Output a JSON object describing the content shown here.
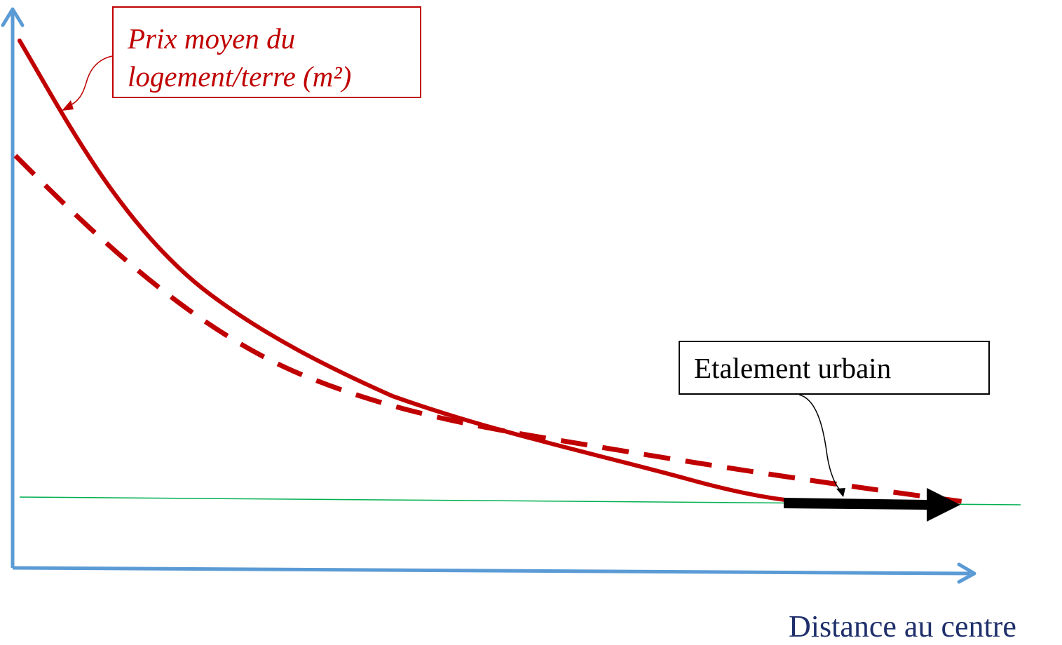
{
  "labels": {
    "price_line1": "Prix moyen du",
    "price_line2": "logement/terre (m²)",
    "sprawl": "Etalement urbain",
    "x_axis": "Distance au centre"
  },
  "colors": {
    "axis": "#5b9bd5",
    "curve": "#c00000",
    "baseline": "#00b050",
    "arrow": "#000000",
    "x_axis_label": "#1f2f6b"
  },
  "curves": {
    "original": "solid",
    "after_sprawl": "dashed"
  }
}
